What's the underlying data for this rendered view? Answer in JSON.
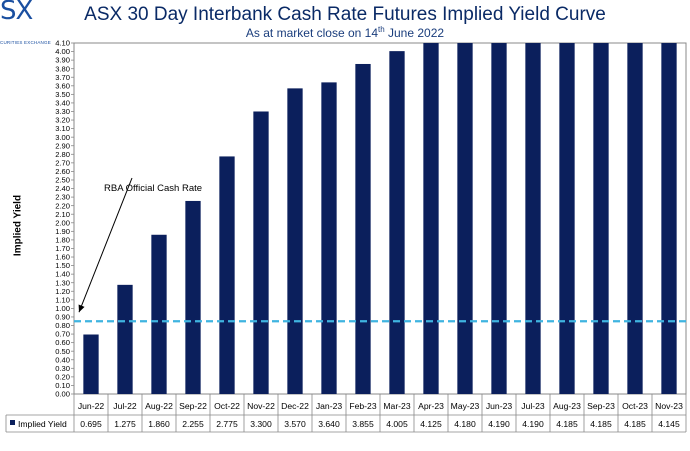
{
  "logo": {
    "letters": "SX",
    "subtext": "CURITIES EXCHANGE"
  },
  "chart_data": {
    "type": "bar",
    "title": "ASX 30 Day Interbank Cash Rate Futures Implied Yield Curve",
    "subtitle_before": "As at market close on 14",
    "subtitle_sup": "th",
    "subtitle_after": " June 2022",
    "ylabel": "Implied Yield",
    "xlabel": "",
    "ylim": [
      0,
      4.1
    ],
    "ytick_step": 0.1,
    "grid": false,
    "categories": [
      "Jun-22",
      "Jul-22",
      "Aug-22",
      "Sep-22",
      "Oct-22",
      "Nov-22",
      "Dec-22",
      "Jan-23",
      "Feb-23",
      "Mar-23",
      "Apr-23",
      "May-23",
      "Jun-23",
      "Jul-23",
      "Aug-23",
      "Sep-23",
      "Oct-23",
      "Nov-23"
    ],
    "series": [
      {
        "name": "Implied Yield",
        "values": [
          0.695,
          1.275,
          1.86,
          2.255,
          2.775,
          3.3,
          3.57,
          3.64,
          3.855,
          4.005,
          4.125,
          4.18,
          4.19,
          4.19,
          4.185,
          4.185,
          4.185,
          4.145
        ],
        "value_labels": [
          "0.695",
          "1.275",
          "1.860",
          "2.255",
          "2.775",
          "3.300",
          "3.570",
          "3.640",
          "3.855",
          "4.005",
          "4.125",
          "4.180",
          "4.190",
          "4.190",
          "4.185",
          "4.185",
          "4.185",
          "4.145"
        ],
        "color": "#0b1f5c"
      }
    ],
    "reference_line": {
      "value": 0.85,
      "color": "#3fb4e0",
      "style": "dashed"
    },
    "annotation": {
      "text": "RBA Official Cash Rate",
      "target_category": "Jun-22",
      "target_value": 0.85
    },
    "legend": "data-table-left"
  }
}
